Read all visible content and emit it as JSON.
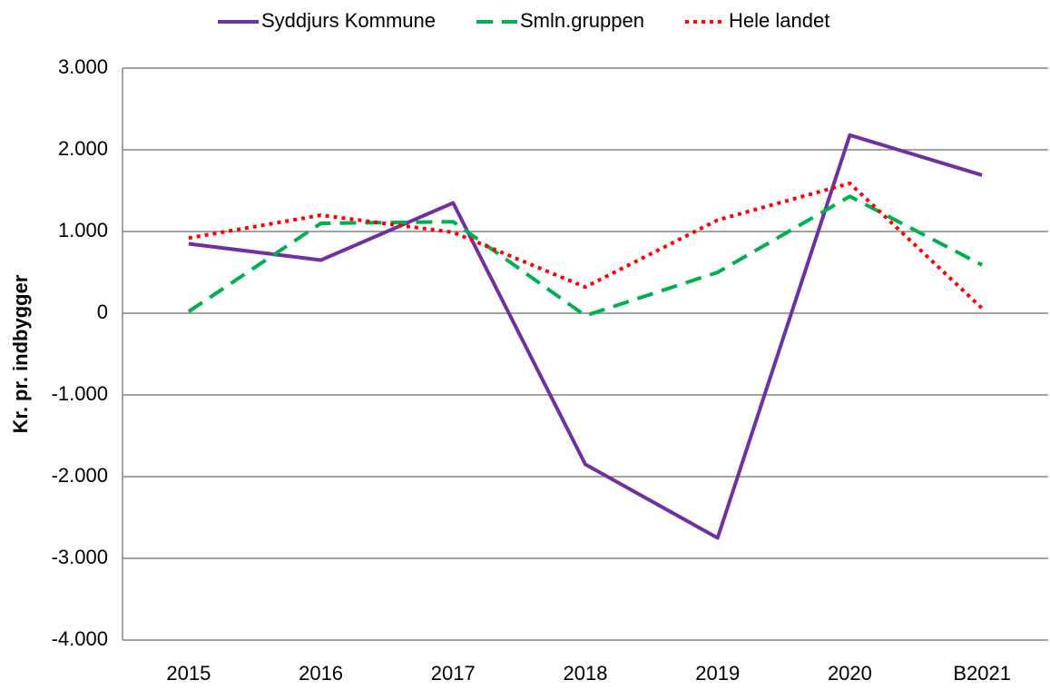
{
  "chart_data": {
    "type": "line",
    "y_label": "Kr. pr. indbygger",
    "categories": [
      "2015",
      "2016",
      "2017",
      "2018",
      "2019",
      "2020",
      "B2021"
    ],
    "series": [
      {
        "name": "Syddjurs Kommune",
        "color": "#7030a0",
        "dash": "solid",
        "values": [
          850,
          650,
          1350,
          -1850,
          -2750,
          2180,
          1690
        ]
      },
      {
        "name": "Smln.gruppen",
        "color": "#00b050",
        "dash": "dashed",
        "values": [
          20,
          1100,
          1120,
          -30,
          500,
          1430,
          590
        ]
      },
      {
        "name": "Hele landet",
        "color": "#ff0000",
        "dash": "dotted",
        "values": [
          920,
          1200,
          990,
          320,
          1140,
          1590,
          60
        ]
      }
    ],
    "ylim": [
      -4000,
      3000
    ],
    "yticks": [
      {
        "value": -4000,
        "label": "-4.000"
      },
      {
        "value": -3000,
        "label": "-3.000"
      },
      {
        "value": -2000,
        "label": "-2.000"
      },
      {
        "value": -1000,
        "label": "-1.000"
      },
      0,
      {
        "value": 1000,
        "label": "1.000"
      },
      {
        "value": 2000,
        "label": "2.000"
      },
      {
        "value": 3000,
        "label": "3.000"
      }
    ],
    "grid": true,
    "legend": "top"
  }
}
